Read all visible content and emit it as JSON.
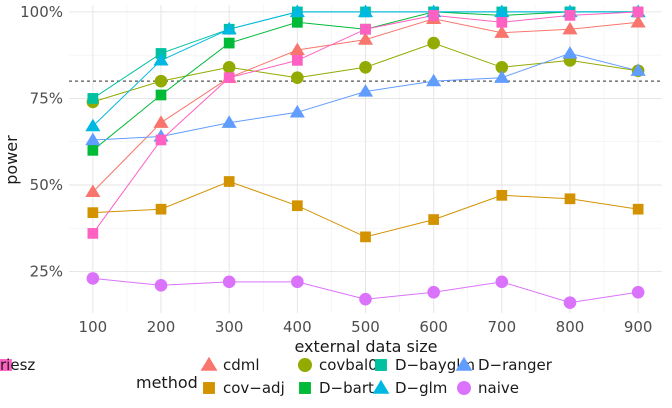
{
  "chart_data": {
    "type": "line",
    "xlabel": "external data size",
    "ylabel": "power",
    "x": [
      100,
      200,
      300,
      400,
      500,
      600,
      700,
      800,
      900
    ],
    "xlim": [
      65,
      935
    ],
    "ylim": [
      0.13,
      1.02
    ],
    "y_ticks": [
      0.25,
      0.5,
      0.75,
      1.0
    ],
    "y_tick_labels": [
      "25%",
      "50%",
      "75%",
      "100%"
    ],
    "x_tick_labels": [
      "100",
      "200",
      "300",
      "400",
      "500",
      "600",
      "700",
      "800",
      "900"
    ],
    "reference_line": 0.8,
    "grid": true,
    "legend_title": "method",
    "legend_position": "bottom",
    "series": [
      {
        "name": "cdml",
        "color": "#F8766D",
        "shape": "triangle",
        "values": [
          0.48,
          0.68,
          0.81,
          0.89,
          0.92,
          0.98,
          0.94,
          0.95,
          0.97
        ]
      },
      {
        "name": "cov−adj",
        "color": "#D39200",
        "shape": "square",
        "values": [
          0.42,
          0.43,
          0.51,
          0.44,
          0.35,
          0.4,
          0.47,
          0.46,
          0.43
        ]
      },
      {
        "name": "covbal0",
        "color": "#93AA00",
        "shape": "circle",
        "values": [
          0.74,
          0.8,
          0.84,
          0.81,
          0.84,
          0.91,
          0.84,
          0.86,
          0.83
        ]
      },
      {
        "name": "D−bart",
        "color": "#00BA38",
        "shape": "square",
        "values": [
          0.6,
          0.76,
          0.91,
          0.97,
          0.95,
          1.0,
          0.99,
          1.0,
          1.0
        ]
      },
      {
        "name": "D−bayglm",
        "color": "#00C19F",
        "shape": "square",
        "values": [
          0.75,
          0.88,
          0.95,
          1.0,
          1.0,
          1.0,
          1.0,
          1.0,
          1.0
        ]
      },
      {
        "name": "D−glm",
        "color": "#00B9E3",
        "shape": "triangle",
        "values": [
          0.67,
          0.86,
          0.95,
          1.0,
          1.0,
          1.0,
          1.0,
          1.0,
          1.0
        ]
      },
      {
        "name": "D−ranger",
        "color": "#619CFF",
        "shape": "triangle",
        "values": [
          0.63,
          0.64,
          0.68,
          0.71,
          0.77,
          0.8,
          0.81,
          0.88,
          0.83
        ]
      },
      {
        "name": "naive",
        "color": "#DB72FB",
        "shape": "circle",
        "values": [
          0.23,
          0.21,
          0.22,
          0.22,
          0.17,
          0.19,
          0.22,
          0.16,
          0.19
        ]
      },
      {
        "name": "riesz",
        "color": "#FF61C3",
        "shape": "square",
        "values": [
          0.36,
          0.63,
          0.81,
          0.86,
          0.95,
          0.99,
          0.97,
          0.99,
          1.0
        ]
      }
    ]
  }
}
